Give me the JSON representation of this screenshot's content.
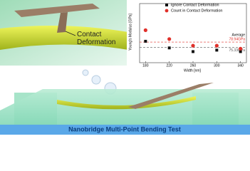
{
  "chart_data": {
    "type": "scatter",
    "x_label": "Width [nm]",
    "y_label": "Young's Modulus [GPa]",
    "x": [
      180,
      220,
      260,
      300,
      340
    ],
    "xlim": [
      170,
      350
    ],
    "xticks": [
      180,
      220,
      260,
      300,
      340
    ],
    "ylim": [
      65,
      105
    ],
    "series": [
      {
        "name": "Ignore Contact Deformation",
        "color": "#111111",
        "marker": "square",
        "values": [
          79.5,
          75,
          72.5,
          73.5,
          72.5
        ]
      },
      {
        "name": "Count in Contact Deformation",
        "color": "#e0302a",
        "marker": "circle",
        "values": [
          87,
          81,
          76.5,
          76.5,
          74.5
        ]
      }
    ],
    "average_label": "Average",
    "average_lines": [
      {
        "value": 78.94,
        "label": "78.94GPa",
        "color": "#e0302a"
      },
      {
        "value": 75.33,
        "label": "75.33GPa",
        "color": "#555555"
      }
    ]
  },
  "illustration": {
    "callout": "Contact\nDeformation",
    "banner": "Nanobridge Multi-Point Bending Test"
  }
}
